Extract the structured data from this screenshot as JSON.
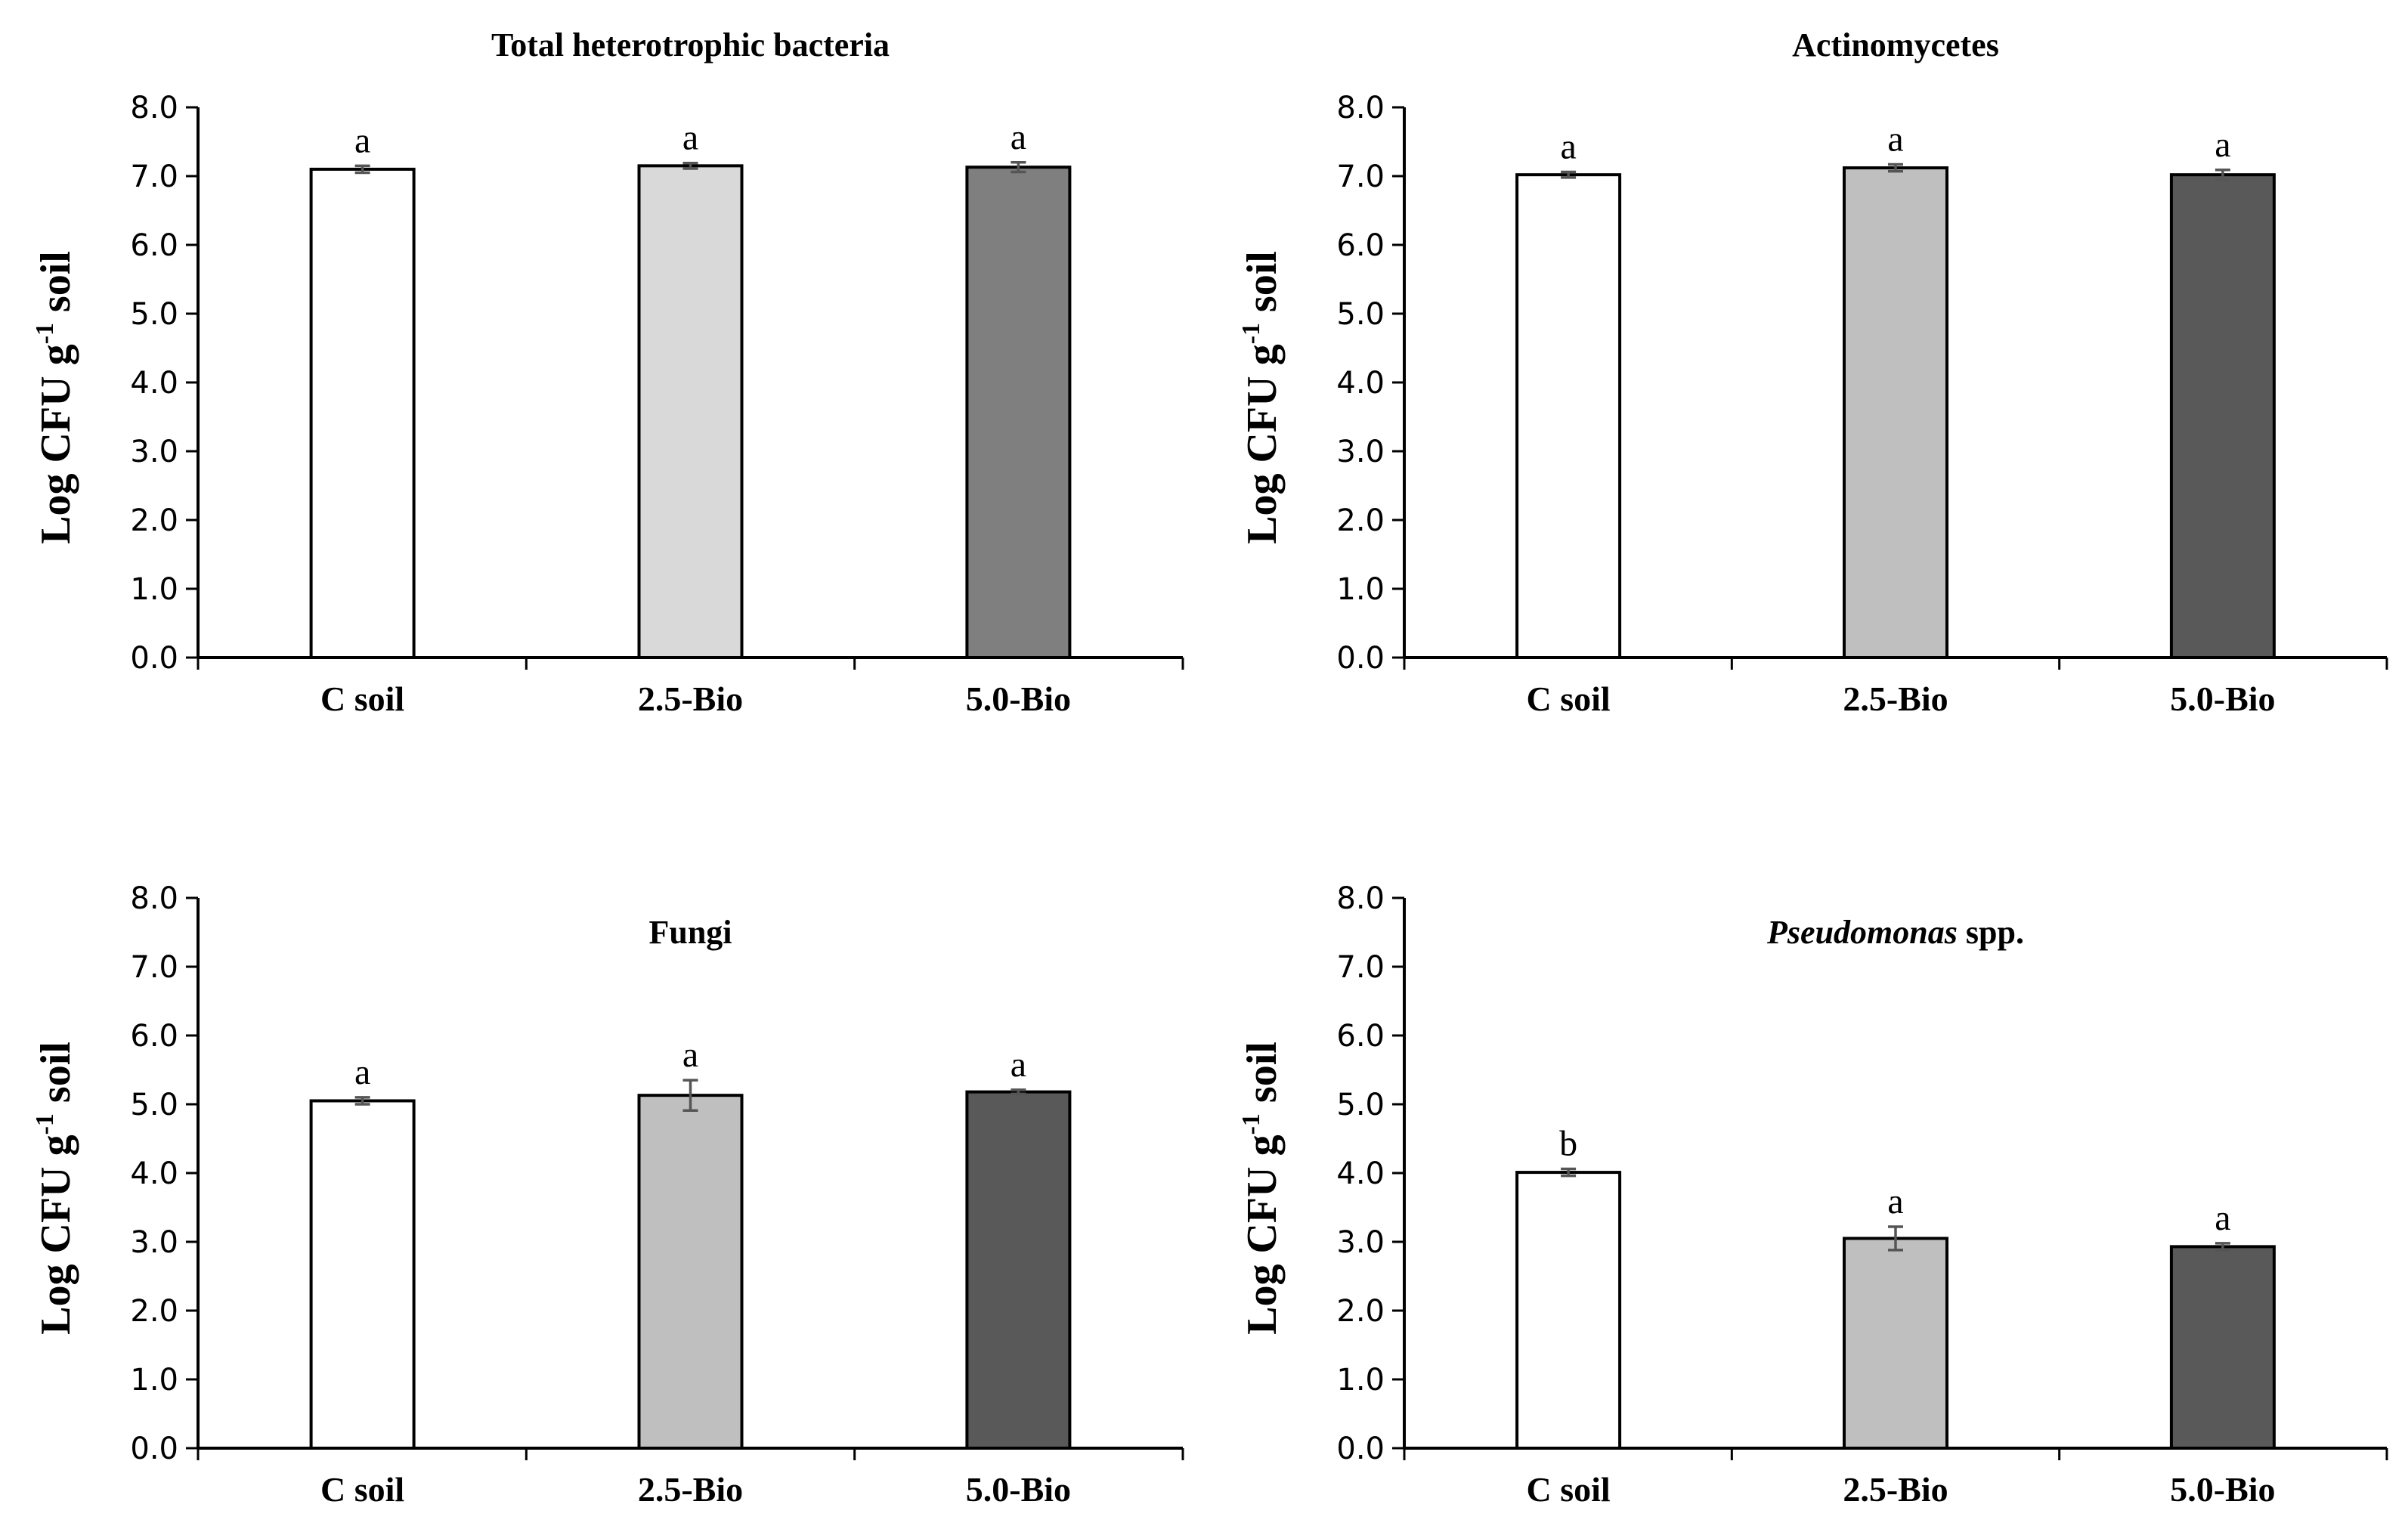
{
  "chart_data": [
    {
      "type": "bar",
      "title": "Total heterotrophic bacteria",
      "title_parts": [
        {
          "text": "Total heterotrophic bacteria",
          "italic": false
        }
      ],
      "title_position": "top",
      "ylabel": "Log CFU g",
      "ylabel_sup": "-1",
      "ylabel_suffix": " soil",
      "xlabel": "",
      "ylim": [
        0,
        8
      ],
      "yticks": [
        "0.0",
        "1.0",
        "2.0",
        "3.0",
        "4.0",
        "5.0",
        "6.0",
        "7.0",
        "8.0"
      ],
      "grid": false,
      "categories": [
        "C soil",
        "2.5-Bio",
        "5.0-Bio"
      ],
      "values": [
        7.1,
        7.15,
        7.13
      ],
      "errors": [
        0.05,
        0.04,
        0.07
      ],
      "significance": [
        "a",
        "a",
        "a"
      ],
      "colors": [
        "#ffffff",
        "#d9d9d9",
        "#7f7f7f"
      ]
    },
    {
      "type": "bar",
      "title": "Actinomycetes",
      "title_parts": [
        {
          "text": "Actinomycetes",
          "italic": false
        }
      ],
      "title_position": "top",
      "ylabel": "Log CFU g",
      "ylabel_sup": "-1",
      "ylabel_suffix": " soil",
      "xlabel": "",
      "ylim": [
        0,
        8
      ],
      "yticks": [
        "0.0",
        "1.0",
        "2.0",
        "3.0",
        "4.0",
        "5.0",
        "6.0",
        "7.0",
        "8.0"
      ],
      "grid": false,
      "categories": [
        "C soil",
        "2.5-Bio",
        "5.0-Bio"
      ],
      "values": [
        7.02,
        7.12,
        7.02
      ],
      "errors": [
        0.04,
        0.05,
        0.07
      ],
      "significance": [
        "a",
        "a",
        "a"
      ],
      "colors": [
        "#ffffff",
        "#bfbfbf",
        "#595959"
      ]
    },
    {
      "type": "bar",
      "title": "Fungi",
      "title_parts": [
        {
          "text": "Fungi",
          "italic": false
        }
      ],
      "title_position": "inside",
      "ylabel": "Log CFU g",
      "ylabel_sup": "-1",
      "ylabel_suffix": " soil",
      "xlabel": "",
      "ylim": [
        0,
        8
      ],
      "yticks": [
        "0.0",
        "1.0",
        "2.0",
        "3.0",
        "4.0",
        "5.0",
        "6.0",
        "7.0",
        "8.0"
      ],
      "grid": false,
      "categories": [
        "C soil",
        "2.5-Bio",
        "5.0-Bio"
      ],
      "values": [
        5.05,
        5.13,
        5.18
      ],
      "errors": [
        0.05,
        0.22,
        0.03
      ],
      "significance": [
        "a",
        "a",
        "a"
      ],
      "colors": [
        "#ffffff",
        "#bfbfbf",
        "#595959"
      ]
    },
    {
      "type": "bar",
      "title": "Pseudomonas spp.",
      "title_parts": [
        {
          "text": "Pseudomonas",
          "italic": true
        },
        {
          "text": " spp.",
          "italic": false
        }
      ],
      "title_position": "inside",
      "ylabel": "Log CFU g",
      "ylabel_sup": "-1",
      "ylabel_suffix": " soil",
      "xlabel": "",
      "ylim": [
        0,
        8
      ],
      "yticks": [
        "0.0",
        "1.0",
        "2.0",
        "3.0",
        "4.0",
        "5.0",
        "6.0",
        "7.0",
        "8.0"
      ],
      "grid": false,
      "categories": [
        "C soil",
        "2.5-Bio",
        "5.0-Bio"
      ],
      "values": [
        4.01,
        3.05,
        2.93
      ],
      "errors": [
        0.05,
        0.17,
        0.05
      ],
      "significance": [
        "b",
        "a",
        "a"
      ],
      "colors": [
        "#ffffff",
        "#bfbfbf",
        "#595959"
      ]
    }
  ]
}
